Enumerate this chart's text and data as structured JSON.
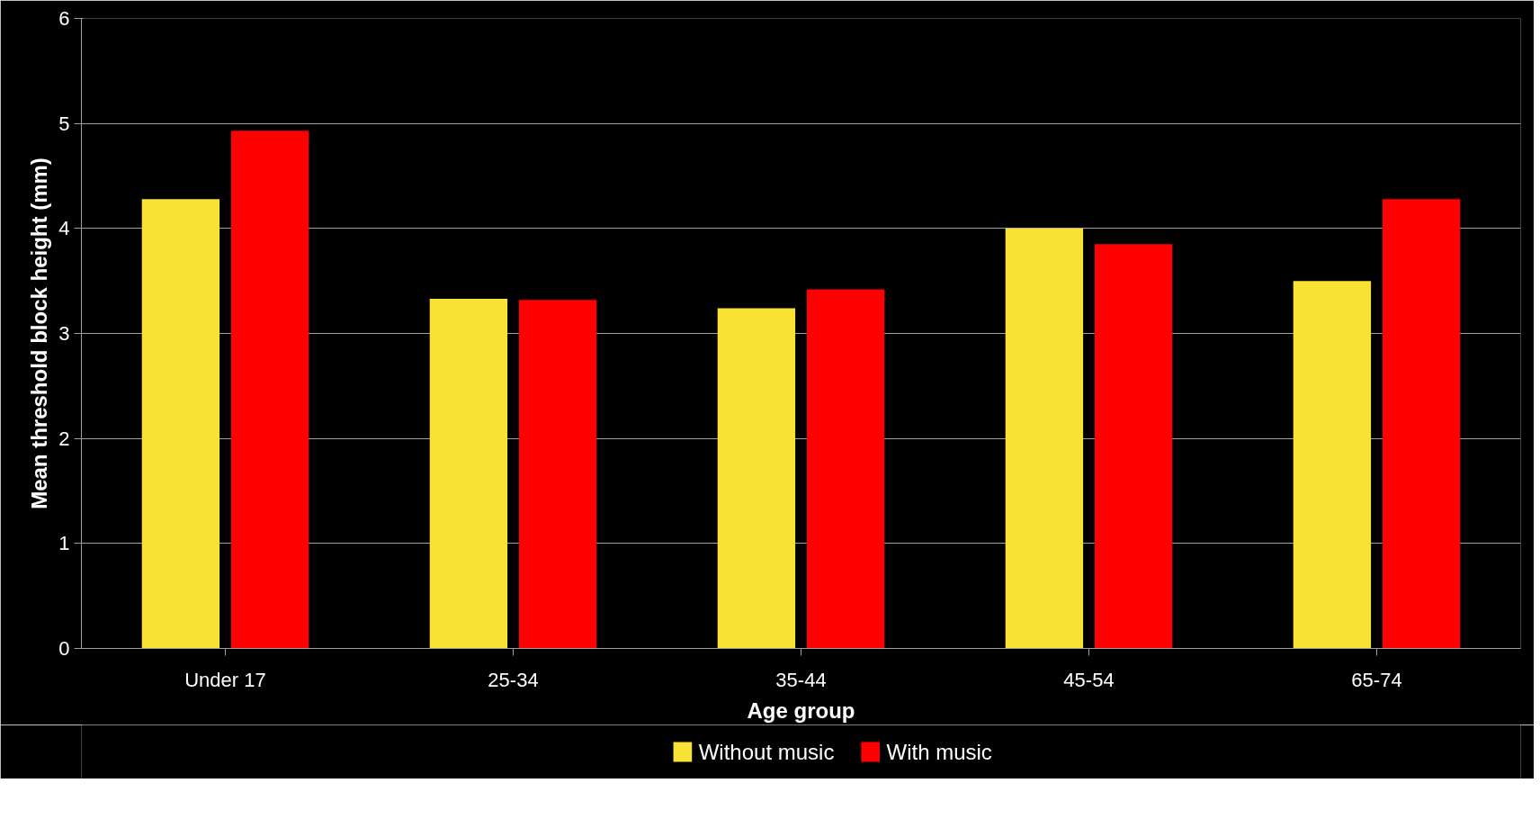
{
  "chart_data": {
    "type": "bar",
    "xlabel": "Age group",
    "ylabel": "Mean threshold block height (mm)",
    "categories": [
      "Under 17",
      "25-34",
      "35-44",
      "45-54",
      "65-74"
    ],
    "series": [
      {
        "name": "Without music",
        "color": "#f9e236",
        "values": [
          4.28,
          3.33,
          3.24,
          4.0,
          3.5
        ]
      },
      {
        "name": "With music",
        "color": "#ff0000",
        "values": [
          4.93,
          3.32,
          3.42,
          3.85,
          4.28
        ]
      }
    ],
    "ylim": [
      0,
      6
    ],
    "yticks": [
      0,
      1,
      2,
      3,
      4,
      5,
      6
    ],
    "grid": "y",
    "legend": "bottom"
  }
}
